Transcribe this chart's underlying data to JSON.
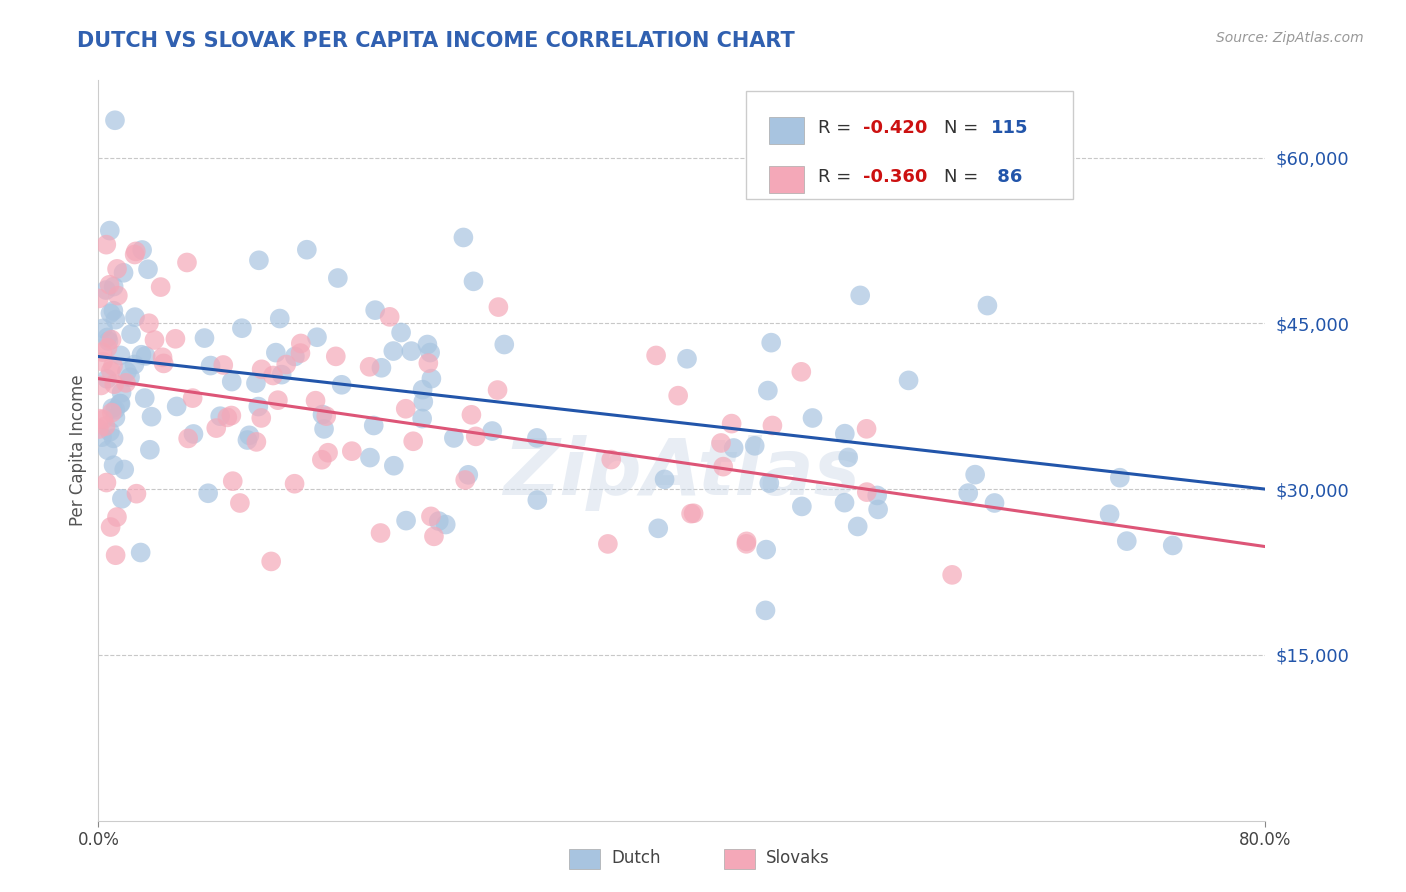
{
  "title": "DUTCH VS SLOVAK PER CAPITA INCOME CORRELATION CHART",
  "source_text": "Source: ZipAtlas.com",
  "ylabel": "Per Capita Income",
  "xlim": [
    0.0,
    0.8
  ],
  "ylim": [
    0,
    67000
  ],
  "yticks": [
    0,
    15000,
    30000,
    45000,
    60000
  ],
  "ytick_labels": [
    "",
    "$15,000",
    "$30,000",
    "$45,000",
    "$60,000"
  ],
  "background_color": "#ffffff",
  "grid_color": "#c8c8c8",
  "dutch_color": "#a8c4e0",
  "slovak_color": "#f4a8b8",
  "dutch_line_color": "#2255aa",
  "slovak_line_color": "#dd5577",
  "dutch_R": -0.42,
  "dutch_N": 115,
  "slovak_R": -0.36,
  "slovak_N": 86,
  "legend_R_color": "#cc1111",
  "legend_N_color": "#2255aa",
  "title_color": "#3060b0",
  "ylabel_color": "#555555",
  "ytick_color": "#2255aa",
  "watermark": "ZipAtlas",
  "dutch_intercept": 42000,
  "dutch_slope": -15000,
  "slovak_intercept": 40000,
  "slovak_slope": -19000,
  "seed": 42
}
